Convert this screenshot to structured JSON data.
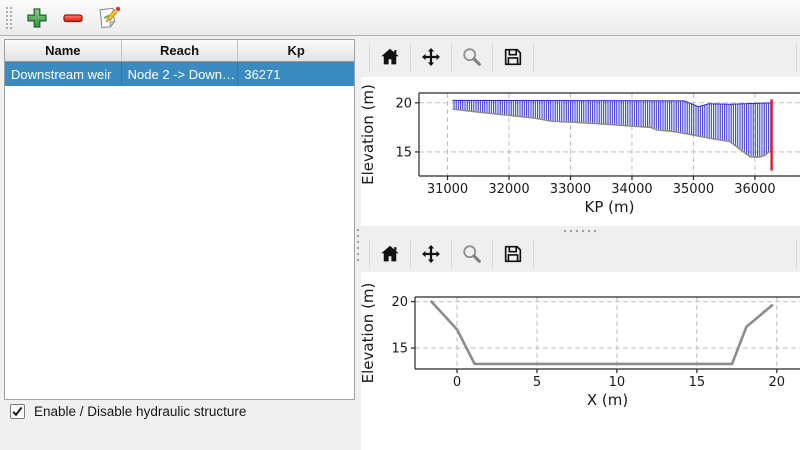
{
  "toolbar": {
    "icons": [
      "plus-icon",
      "minus-icon",
      "edit-icon"
    ]
  },
  "structures_table": {
    "columns": [
      "Name",
      "Reach",
      "Kp"
    ],
    "rows": [
      {
        "name": "Downstream weir",
        "reach": "Node 2 -> Down…",
        "kp": "36271",
        "selected": true
      }
    ]
  },
  "enable_checkbox": {
    "label": "Enable / Disable hydraulic structure",
    "checked": true
  },
  "plot_toolbar": {
    "icons": [
      "home-icon",
      "pan-icon",
      "zoom-icon",
      "save-icon"
    ]
  },
  "colors": {
    "selection_blue": "#3a8bc2",
    "hatch_blue": "#2929cc",
    "weir_marker_red": "#e3192d",
    "cross_section_gray": "#8c8c8c"
  },
  "chart_data": [
    {
      "id": "longitudinal-profile",
      "type": "area",
      "xlabel": "KP (m)",
      "ylabel": "Elevation (m)",
      "xlim": [
        30536,
        36733
      ],
      "ylim": [
        12.55,
        21.0
      ],
      "xticks": [
        31000,
        32000,
        33000,
        34000,
        35000,
        36000
      ],
      "yticks": [
        15,
        20
      ],
      "grid": true,
      "series": [
        {
          "name": "channel-band",
          "style": "hatch-band",
          "color": "#2929cc",
          "edge_bottom_color": "#8a8a8a",
          "top": [
            [
              31080,
              20.25
            ],
            [
              34850,
              20.2
            ],
            [
              34950,
              19.95
            ],
            [
              35080,
              19.6
            ],
            [
              35250,
              19.9
            ],
            [
              35600,
              19.85
            ],
            [
              36000,
              19.95
            ],
            [
              36280,
              20.0
            ]
          ],
          "bottom": [
            [
              31080,
              19.35
            ],
            [
              31500,
              19.05
            ],
            [
              32000,
              18.72
            ],
            [
              32400,
              18.45
            ],
            [
              32700,
              18.12
            ],
            [
              33100,
              18.0
            ],
            [
              33500,
              17.85
            ],
            [
              34000,
              17.62
            ],
            [
              34300,
              17.5
            ],
            [
              34400,
              17.25
            ],
            [
              34700,
              17.05
            ],
            [
              35000,
              16.7
            ],
            [
              35300,
              16.35
            ],
            [
              35590,
              16.05
            ],
            [
              35750,
              15.3
            ],
            [
              35920,
              14.5
            ],
            [
              36050,
              14.45
            ],
            [
              36150,
              14.6
            ],
            [
              36230,
              15.0
            ],
            [
              36280,
              15.1
            ]
          ]
        },
        {
          "name": "weir-marker",
          "style": "vline",
          "x": 36271,
          "y0": 13.1,
          "y1": 20.35,
          "color": "#e3192d"
        }
      ]
    },
    {
      "id": "cross-section",
      "type": "line",
      "xlabel": "X (m)",
      "ylabel": "Elevation (m)",
      "xlim": [
        -2.63,
        21.45
      ],
      "ylim": [
        12.75,
        20.5
      ],
      "xticks": [
        0,
        5,
        10,
        15,
        20
      ],
      "yticks": [
        15,
        20
      ],
      "grid": true,
      "series": [
        {
          "name": "cross-section-line",
          "style": "line",
          "color": "#8c8c8c",
          "width": 2.6,
          "points": [
            [
              -1.6,
              20.0
            ],
            [
              0.0,
              17.0
            ],
            [
              1.1,
              13.3
            ],
            [
              17.2,
              13.3
            ],
            [
              18.1,
              17.3
            ],
            [
              19.7,
              19.6
            ]
          ]
        }
      ]
    }
  ]
}
